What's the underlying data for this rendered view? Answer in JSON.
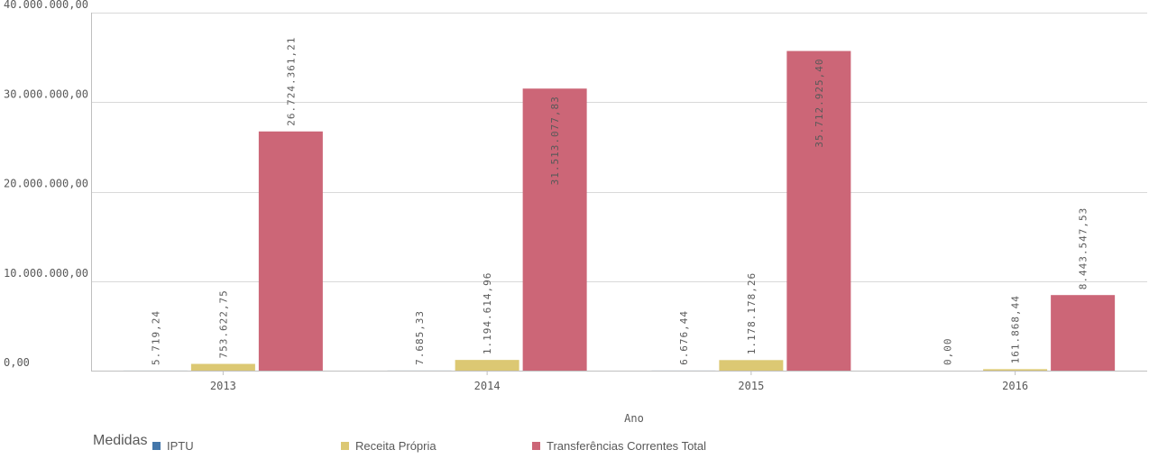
{
  "chart_data": {
    "type": "bar",
    "categories": [
      "2013",
      "2014",
      "2015",
      "2016"
    ],
    "series": [
      {
        "name": "IPTU",
        "color": "#4477aa",
        "values": [
          5719.24,
          7685.33,
          6676.44,
          0.0
        ],
        "labels": [
          "5.719,24",
          "7.685,33",
          "6.676,44",
          "0,00"
        ]
      },
      {
        "name": "Receita Própria",
        "color": "#dcc873",
        "values": [
          753622.75,
          1194614.96,
          1178178.26,
          161868.44
        ],
        "labels": [
          "753.622,75",
          "1.194.614,96",
          "1.178.178,26",
          "161.868,44"
        ]
      },
      {
        "name": "Transferências Correntes Total",
        "color": "#cc6677",
        "values": [
          26724361.21,
          31513077.83,
          35712925.4,
          8443547.53
        ],
        "labels": [
          "26.724.361,21",
          "31.513.077,83",
          "35.712.925,40",
          "8.443.547,53"
        ]
      }
    ],
    "yticks": [
      0,
      10000000,
      20000000,
      30000000,
      40000000
    ],
    "ytick_labels": [
      "0,00",
      "10.000.000,00",
      "20.000.000,00",
      "30.000.000,00",
      "40.000.000,00"
    ],
    "ylim": [
      0,
      40000000
    ],
    "xlabel": "Ano",
    "ylabel": "",
    "grid": true,
    "legend_title": "Medidas",
    "legend_position": "bottom-left"
  }
}
